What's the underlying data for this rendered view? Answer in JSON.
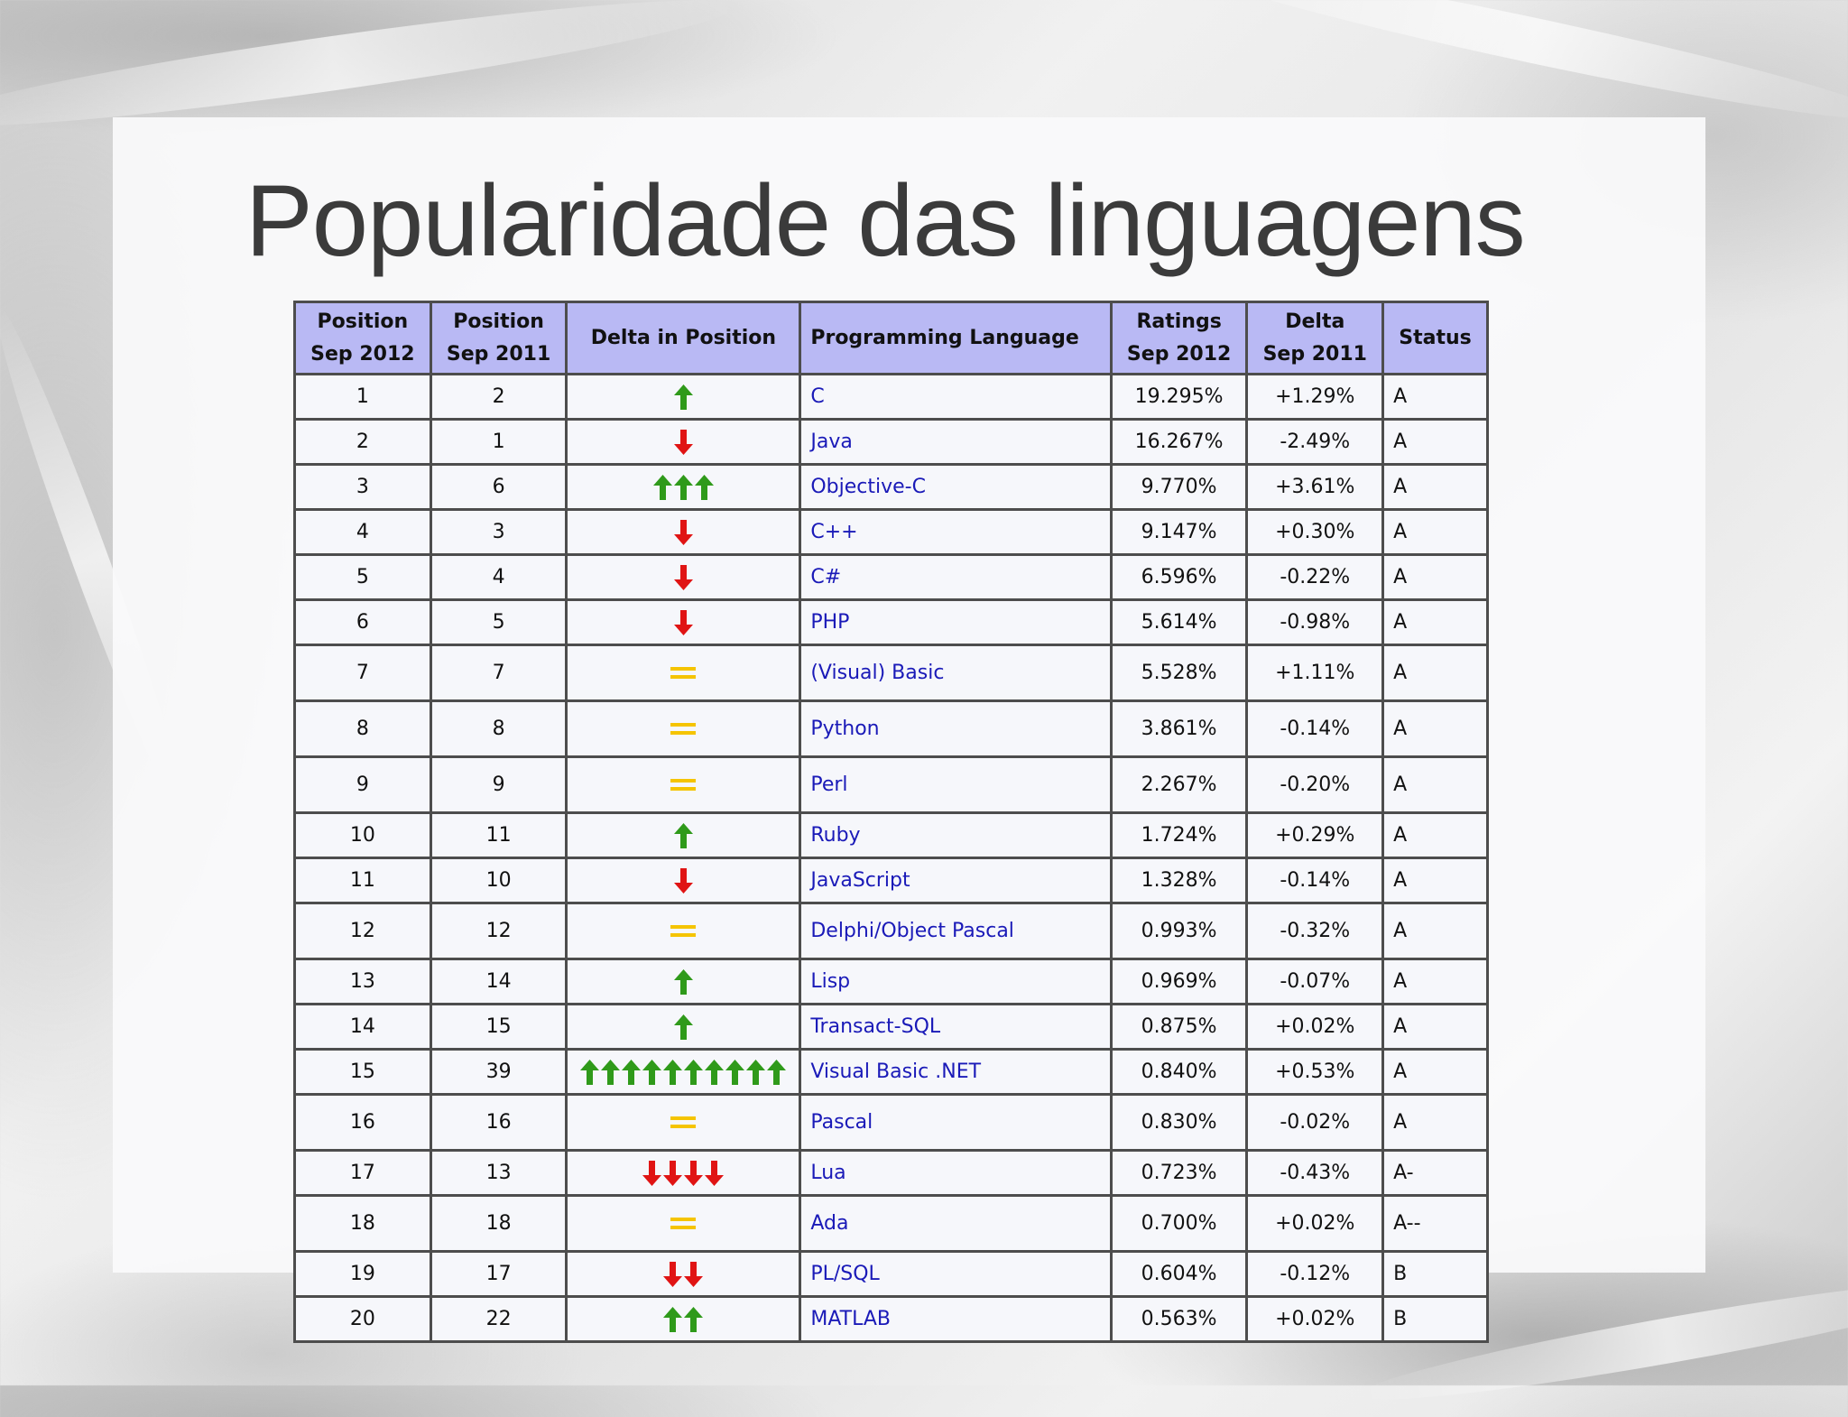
{
  "slide": {
    "title": "Popularidade das linguagens"
  },
  "colors": {
    "header_bg": "#b9b9f4",
    "up": "#2f9a1a",
    "down": "#e01414",
    "equal": "#f5c400",
    "language_link": "#1a1ab8"
  },
  "table": {
    "headers": {
      "pos_2012": [
        "Position",
        "Sep 2012"
      ],
      "pos_2011": [
        "Position",
        "Sep 2011"
      ],
      "delta_pos": "Delta in Position",
      "language": "Programming Language",
      "ratings": [
        "Ratings",
        "Sep 2012"
      ],
      "delta": [
        "Delta",
        "Sep 2011"
      ],
      "status": "Status"
    },
    "rows": [
      {
        "pos2012": "1",
        "pos2011": "2",
        "trend": "up",
        "trend_count": 1,
        "language": "C",
        "rating": "19.295%",
        "delta": "+1.29%",
        "status": "A"
      },
      {
        "pos2012": "2",
        "pos2011": "1",
        "trend": "down",
        "trend_count": 1,
        "language": "Java",
        "rating": "16.267%",
        "delta": "-2.49%",
        "status": "A"
      },
      {
        "pos2012": "3",
        "pos2011": "6",
        "trend": "up",
        "trend_count": 3,
        "language": "Objective-C",
        "rating": "9.770%",
        "delta": "+3.61%",
        "status": "A"
      },
      {
        "pos2012": "4",
        "pos2011": "3",
        "trend": "down",
        "trend_count": 1,
        "language": "C++",
        "rating": "9.147%",
        "delta": "+0.30%",
        "status": "A"
      },
      {
        "pos2012": "5",
        "pos2011": "4",
        "trend": "down",
        "trend_count": 1,
        "language": "C#",
        "rating": "6.596%",
        "delta": "-0.22%",
        "status": "A"
      },
      {
        "pos2012": "6",
        "pos2011": "5",
        "trend": "down",
        "trend_count": 1,
        "language": "PHP",
        "rating": "5.614%",
        "delta": "-0.98%",
        "status": "A"
      },
      {
        "pos2012": "7",
        "pos2011": "7",
        "trend": "equal",
        "trend_count": 1,
        "language": "(Visual) Basic",
        "rating": "5.528%",
        "delta": "+1.11%",
        "status": "A"
      },
      {
        "pos2012": "8",
        "pos2011": "8",
        "trend": "equal",
        "trend_count": 1,
        "language": "Python",
        "rating": "3.861%",
        "delta": "-0.14%",
        "status": "A"
      },
      {
        "pos2012": "9",
        "pos2011": "9",
        "trend": "equal",
        "trend_count": 1,
        "language": "Perl",
        "rating": "2.267%",
        "delta": "-0.20%",
        "status": "A"
      },
      {
        "pos2012": "10",
        "pos2011": "11",
        "trend": "up",
        "trend_count": 1,
        "language": "Ruby",
        "rating": "1.724%",
        "delta": "+0.29%",
        "status": "A"
      },
      {
        "pos2012": "11",
        "pos2011": "10",
        "trend": "down",
        "trend_count": 1,
        "language": "JavaScript",
        "rating": "1.328%",
        "delta": "-0.14%",
        "status": "A"
      },
      {
        "pos2012": "12",
        "pos2011": "12",
        "trend": "equal",
        "trend_count": 1,
        "language": "Delphi/Object Pascal",
        "rating": "0.993%",
        "delta": "-0.32%",
        "status": "A"
      },
      {
        "pos2012": "13",
        "pos2011": "14",
        "trend": "up",
        "trend_count": 1,
        "language": "Lisp",
        "rating": "0.969%",
        "delta": "-0.07%",
        "status": "A"
      },
      {
        "pos2012": "14",
        "pos2011": "15",
        "trend": "up",
        "trend_count": 1,
        "language": "Transact-SQL",
        "rating": "0.875%",
        "delta": "+0.02%",
        "status": "A"
      },
      {
        "pos2012": "15",
        "pos2011": "39",
        "trend": "up",
        "trend_count": 10,
        "language": "Visual Basic .NET",
        "rating": "0.840%",
        "delta": "+0.53%",
        "status": "A"
      },
      {
        "pos2012": "16",
        "pos2011": "16",
        "trend": "equal",
        "trend_count": 1,
        "language": "Pascal",
        "rating": "0.830%",
        "delta": "-0.02%",
        "status": "A"
      },
      {
        "pos2012": "17",
        "pos2011": "13",
        "trend": "down",
        "trend_count": 4,
        "language": "Lua",
        "rating": "0.723%",
        "delta": "-0.43%",
        "status": "A-"
      },
      {
        "pos2012": "18",
        "pos2011": "18",
        "trend": "equal",
        "trend_count": 1,
        "language": "Ada",
        "rating": "0.700%",
        "delta": "+0.02%",
        "status": "A--"
      },
      {
        "pos2012": "19",
        "pos2011": "17",
        "trend": "down",
        "trend_count": 2,
        "language": "PL/SQL",
        "rating": "0.604%",
        "delta": "-0.12%",
        "status": "B"
      },
      {
        "pos2012": "20",
        "pos2011": "22",
        "trend": "up",
        "trend_count": 2,
        "language": "MATLAB",
        "rating": "0.563%",
        "delta": "+0.02%",
        "status": "B"
      }
    ]
  }
}
